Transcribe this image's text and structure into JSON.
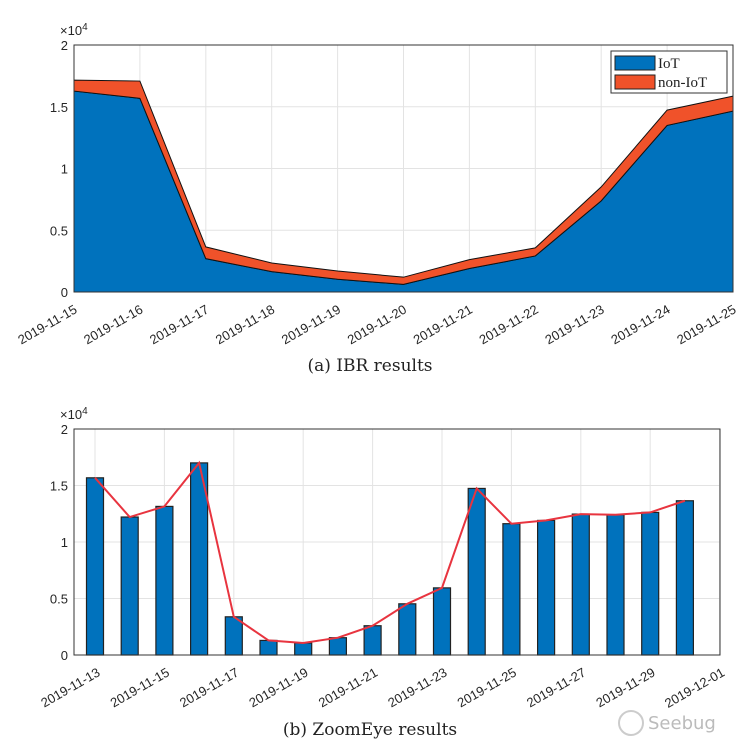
{
  "chart_data": [
    {
      "type": "area",
      "title": "",
      "caption": "(a) IBR results",
      "stacked": true,
      "x": [
        "2019-11-15",
        "2019-11-16",
        "2019-11-17",
        "2019-11-18",
        "2019-11-19",
        "2019-11-20",
        "2019-11-21",
        "2019-11-22",
        "2019-11-23",
        "2019-11-24",
        "2019-11-25"
      ],
      "series": [
        {
          "name": "IoT",
          "color": "#0072BD",
          "values": [
            16270,
            15680,
            2700,
            1650,
            1030,
            620,
            1900,
            2920,
            7380,
            13490,
            14650
          ]
        },
        {
          "name": "non-IoT",
          "color": "#F0522A",
          "values": [
            890,
            1400,
            950,
            700,
            670,
            580,
            720,
            650,
            1130,
            1240,
            1210
          ]
        }
      ],
      "ylim": [
        0,
        20000
      ],
      "yticks": [
        "0",
        "0.5",
        "1",
        "1.5",
        "2"
      ],
      "yexp": "×10",
      "yexp_power": "4",
      "grid": true,
      "legend": "top-right"
    },
    {
      "type": "bar",
      "title": "",
      "caption": "(b) ZoomEye results",
      "x": [
        "2019-11-13",
        "2019-11-14",
        "2019-11-15",
        "2019-11-16",
        "2019-11-17",
        "2019-11-18",
        "2019-11-19",
        "2019-11-20",
        "2019-11-21",
        "2019-11-22",
        "2019-11-23",
        "2019-11-24",
        "2019-11-25",
        "2019-11-26",
        "2019-11-27",
        "2019-11-28",
        "2019-11-29",
        "2019-11-30"
      ],
      "xticks": [
        "2019-11-13",
        "2019-11-15",
        "2019-11-17",
        "2019-11-19",
        "2019-11-21",
        "2019-11-23",
        "2019-11-25",
        "2019-11-27",
        "2019-11-29",
        "2019-12-01"
      ],
      "values": [
        15680,
        12210,
        13150,
        17000,
        3380,
        1290,
        1060,
        1530,
        2590,
        4530,
        5940,
        14740,
        11620,
        11910,
        12470,
        12410,
        12620,
        13650
      ],
      "line_values": [
        15680,
        12210,
        13150,
        17000,
        3380,
        1290,
        1060,
        1530,
        2590,
        4530,
        5940,
        14740,
        11620,
        11910,
        12470,
        12410,
        12620,
        13650
      ],
      "bar_color": "#0072BD",
      "line_color": "#E8343F",
      "ylim": [
        0,
        20000
      ],
      "yticks": [
        "0",
        "0.5",
        "1",
        "1.5",
        "2"
      ],
      "yexp": "×10",
      "yexp_power": "4",
      "grid": true
    }
  ],
  "watermark": "Seebug"
}
